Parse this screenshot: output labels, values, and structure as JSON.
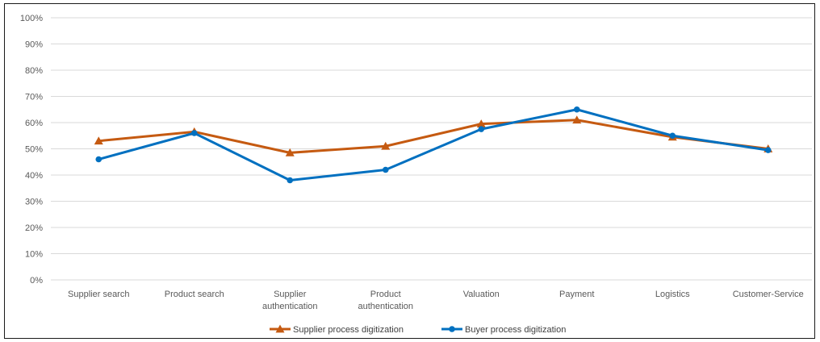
{
  "chart_data": {
    "type": "line",
    "categories": [
      [
        "Supplier search"
      ],
      [
        "Product search"
      ],
      [
        "Supplier",
        "authentication"
      ],
      [
        "Product",
        "authentication"
      ],
      [
        "Valuation"
      ],
      [
        "Payment"
      ],
      [
        "Logistics"
      ],
      [
        "Customer-Service"
      ]
    ],
    "ylim": [
      0,
      100
    ],
    "yticks": [
      "0%",
      "10%",
      "20%",
      "30%",
      "40%",
      "50%",
      "60%",
      "70%",
      "80%",
      "90%",
      "100%"
    ],
    "grid": true,
    "legend_position": "bottom",
    "series": [
      {
        "name": "Supplier process digitization",
        "color": "#c55a11",
        "marker": "triangle",
        "values": [
          53,
          56.5,
          48.5,
          51,
          59.5,
          61,
          54.5,
          50
        ]
      },
      {
        "name": "Buyer process digitization",
        "color": "#0070c0",
        "marker": "circle",
        "values": [
          46,
          56,
          38,
          42,
          57.5,
          65,
          55,
          49.5
        ]
      }
    ]
  }
}
